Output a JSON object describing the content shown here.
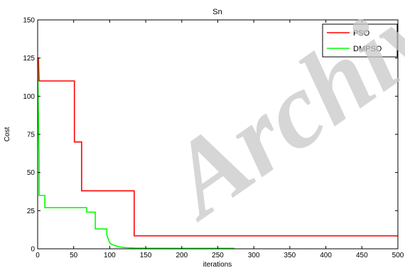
{
  "watermark": "Archive",
  "chart_data": {
    "type": "line",
    "title": "Sn",
    "xlabel": "iterations",
    "ylabel": "Cost",
    "xlim": [
      0,
      500
    ],
    "ylim": [
      0,
      150
    ],
    "x_ticks": [
      0,
      50,
      100,
      150,
      200,
      250,
      300,
      350,
      400,
      450,
      500
    ],
    "y_ticks": [
      0,
      25,
      50,
      75,
      100,
      125,
      150
    ],
    "grid": false,
    "legend_position": "top-right",
    "series": [
      {
        "name": "PSO",
        "color": "#ff0000",
        "x": [
          0,
          1,
          2,
          2,
          51,
          51,
          56,
          56,
          61,
          61,
          134,
          134,
          500
        ],
        "y": [
          125,
          125,
          110,
          110,
          110,
          70,
          70,
          70,
          70,
          38,
          38,
          8.5,
          8.5
        ]
      },
      {
        "name": "DMPSO",
        "color": "#00ff00",
        "x": [
          0,
          1,
          2,
          2,
          10,
          10,
          68,
          68,
          80,
          80,
          96,
          96,
          100,
          102,
          105,
          108,
          112,
          117,
          125,
          135,
          150,
          200,
          273
        ],
        "y": [
          125,
          90,
          58,
          35,
          35,
          27,
          27,
          24,
          24,
          13,
          13,
          9,
          4,
          3,
          2.5,
          2,
          1.5,
          1,
          0.7,
          0.5,
          0.4,
          0.3,
          0.3
        ]
      }
    ]
  }
}
